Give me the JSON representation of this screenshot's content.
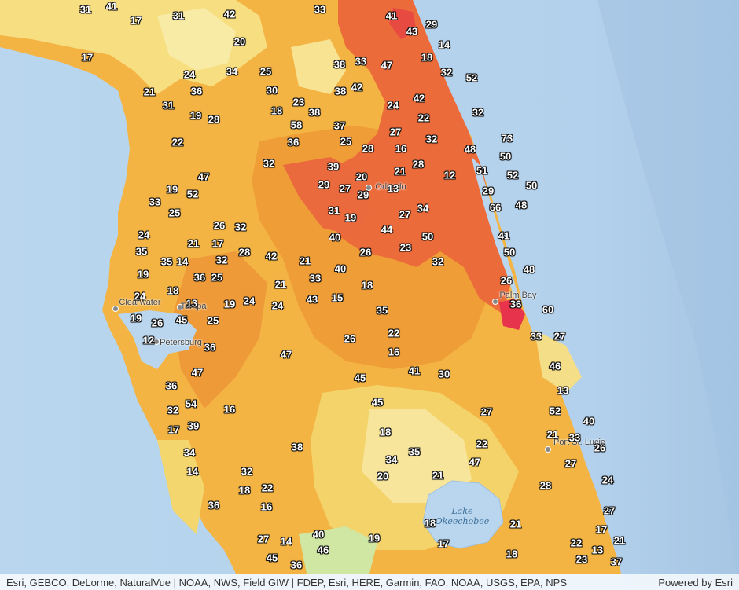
{
  "attribution": {
    "sources": "Esri, GEBCO, DeLorme, NaturalVue | NOAA, NWS, Field GIW | FDEP, Esri, HERE, Garmin, FAO, NOAA, USGS, EPA, NPS",
    "powered_by": "Powered by Esri"
  },
  "places": [
    {
      "id": "clearwater",
      "name": "Clearwater"
    },
    {
      "id": "tampa",
      "name": "Tampa"
    },
    {
      "id": "st-petersburg",
      "name": "Petersburg"
    },
    {
      "id": "orlando",
      "name": "Orlando"
    },
    {
      "id": "palm-bay",
      "name": "Palm Bay"
    },
    {
      "id": "port-st-lucie",
      "name": "Port St. Lucie"
    }
  ],
  "lake": {
    "line1": "Lake",
    "line2": "Okeechobee"
  },
  "colors": {
    "water": "#b9d6ee",
    "ocean_dark": "#a9c9e6",
    "light_yellow": "#f6e79a",
    "yellow_orange": "#f7c54b",
    "orange": "#f0a83a",
    "dark_orange": "#ee8a32",
    "red_orange": "#ec6a3c",
    "red": "#e8384a",
    "green": "#c9e6a0",
    "label_text": "#ffffff",
    "label_outline": "#111111"
  },
  "values": [
    "31",
    "41",
    "17",
    "31",
    "42",
    "33",
    "41",
    "29",
    "43",
    "14",
    "17",
    "20",
    "38",
    "33",
    "47",
    "18",
    "32",
    "52",
    "24",
    "34",
    "25",
    "21",
    "36",
    "30",
    "38",
    "42",
    "31",
    "23",
    "18",
    "38",
    "24",
    "42",
    "32",
    "19",
    "28",
    "58",
    "37",
    "22",
    "27",
    "73",
    "22",
    "36",
    "25",
    "28",
    "16",
    "32",
    "48",
    "50",
    "32",
    "47",
    "39",
    "21",
    "28",
    "12",
    "51",
    "52",
    "20",
    "50",
    "29",
    "27",
    "29",
    "13",
    "19",
    "52",
    "29",
    "66",
    "48",
    "33",
    "31",
    "19",
    "34",
    "27",
    "25",
    "26",
    "32",
    "40",
    "44",
    "50",
    "41",
    "24",
    "21",
    "17",
    "32",
    "28",
    "42",
    "21",
    "26",
    "23",
    "35",
    "35",
    "14",
    "32",
    "50",
    "48",
    "19",
    "36",
    "25",
    "21",
    "33",
    "40",
    "18",
    "26",
    "24",
    "18",
    "13",
    "19",
    "24",
    "24",
    "43",
    "15",
    "36",
    "60",
    "19",
    "26",
    "45",
    "25",
    "35",
    "22",
    "12",
    "36",
    "26",
    "33",
    "27",
    "47",
    "16",
    "47",
    "41",
    "30",
    "46",
    "36",
    "45",
    "13",
    "54",
    "32",
    "16",
    "45",
    "27",
    "52",
    "40",
    "17",
    "39",
    "21",
    "33",
    "18",
    "26",
    "34",
    "22",
    "38",
    "35",
    "34",
    "47",
    "14",
    "32",
    "20",
    "21",
    "27",
    "18",
    "22",
    "28",
    "24",
    "16",
    "36",
    "27",
    "18",
    "21",
    "17",
    "27",
    "14",
    "40",
    "19",
    "46",
    "17",
    "22",
    "21",
    "13",
    "45",
    "36",
    "18",
    "23",
    "37"
  ]
}
